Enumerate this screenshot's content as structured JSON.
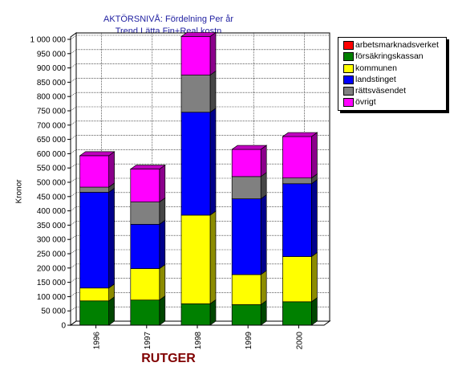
{
  "chart_data": {
    "type": "bar",
    "stacked": true,
    "title": [
      "AKTÖRSNIVÅ: Fördelning  Per år",
      "Trend Lätta Fin+Real kostn"
    ],
    "xlabel": "RUTGER",
    "ylabel": "Kronor",
    "ylim": [
      0,
      1000000
    ],
    "ytick_step": 50000,
    "yticks": [
      "0",
      "50 000",
      "100 000",
      "150 000",
      "200 000",
      "250 000",
      "300 000",
      "350 000",
      "400 000",
      "450 000",
      "500 000",
      "550 000",
      "600 000",
      "650 000",
      "700 000",
      "750 000",
      "800 000",
      "850 000",
      "900 000",
      "950 000",
      "1 000 000"
    ],
    "categories": [
      "1996",
      "1997",
      "1998",
      "1999",
      "2000"
    ],
    "grid": true,
    "legend_position": "top-right",
    "series": [
      {
        "name": "arbetsmarknadsverket",
        "color": "#ff0000",
        "values": [
          0,
          0,
          0,
          0,
          0
        ]
      },
      {
        "name": "försäkringskassan",
        "color": "#008000",
        "values": [
          85000,
          88000,
          75000,
          72000,
          82000
        ]
      },
      {
        "name": "kommunen",
        "color": "#ffff00",
        "values": [
          45000,
          110000,
          310000,
          105000,
          158000
        ]
      },
      {
        "name": "landstinget",
        "color": "#0000ff",
        "values": [
          335000,
          155000,
          360000,
          265000,
          255000
        ]
      },
      {
        "name": "rättsväsendet",
        "color": "#808080",
        "values": [
          18000,
          78000,
          130000,
          78000,
          20000
        ]
      },
      {
        "name": "övrigt",
        "color": "#ff00ff",
        "values": [
          110000,
          115000,
          135000,
          95000,
          145000
        ]
      }
    ]
  }
}
